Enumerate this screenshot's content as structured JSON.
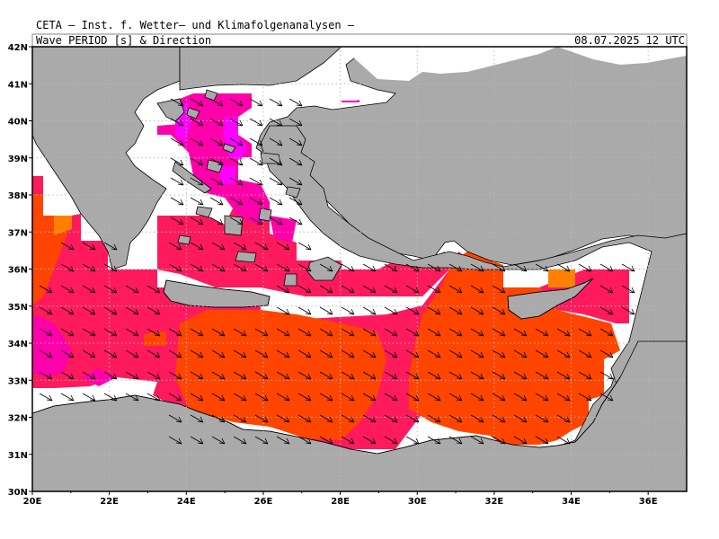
{
  "header": {
    "institute": "CETA — Inst. f. Wetter— und Klimafolgenanalysen —",
    "variable": "Wave_PERIOD_[s]_&_Direction",
    "valid_time": "08.07.2025 12 UTC"
  },
  "map": {
    "region": "Eastern Mediterranean",
    "lon_range": [
      20,
      37
    ],
    "lat_range": [
      30,
      42
    ],
    "lon_ticks": [
      "20E",
      "22E",
      "24E",
      "26E",
      "28E",
      "30E",
      "32E",
      "34E",
      "36E"
    ],
    "lat_ticks": [
      "42N",
      "41N",
      "40N",
      "39N",
      "38N",
      "37N",
      "36N",
      "35N",
      "34N",
      "33N",
      "32N",
      "31N",
      "30N"
    ],
    "gridlines": "dotted",
    "colors": {
      "land": "#aaaaaa",
      "sea_nodata": "#ffffff",
      "period_long": "#ff4500",
      "period_mid": "#ff1a5e",
      "period_short": "#ff00aa",
      "period_shortest": "#ff00ff",
      "period_local": "#ff8000"
    },
    "wave_direction": "north-west to south-east"
  }
}
